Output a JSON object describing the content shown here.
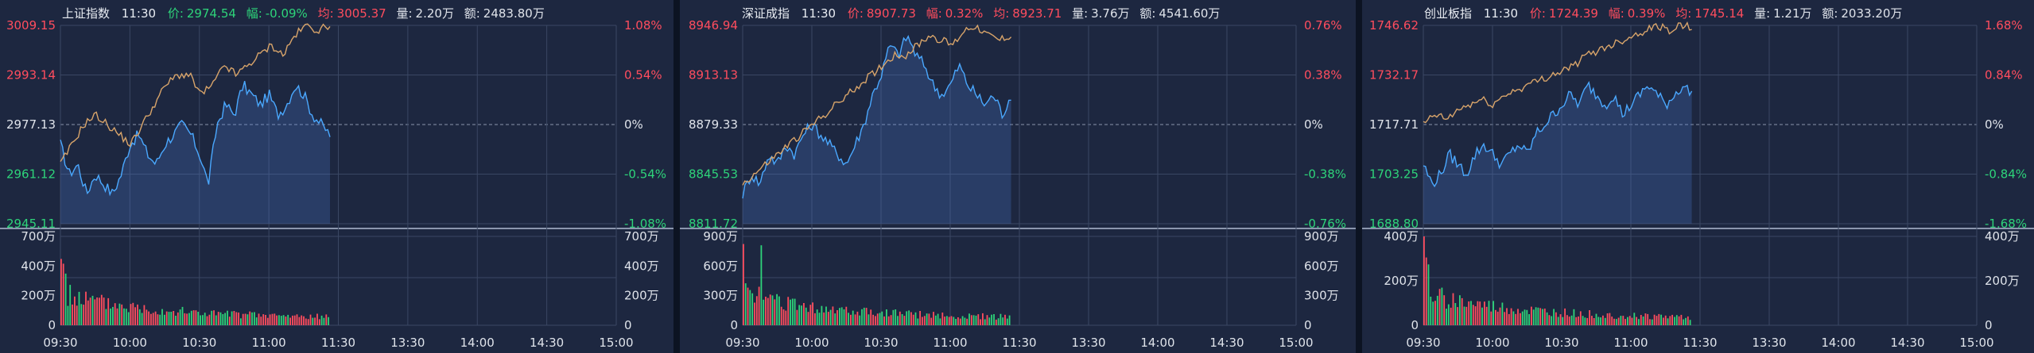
{
  "colors": {
    "up": "#ff4d5e",
    "down": "#2ed47a",
    "neutral": "#dfe3ea",
    "price_line": "#4aa8ff",
    "avg_line": "#d8a46a",
    "grid": "#3a4763",
    "panel_bg": "#1d2740"
  },
  "time_labels": [
    "09:30",
    "10:00",
    "10:30",
    "11:00",
    "11:30",
    "13:30",
    "14:00",
    "14:30",
    "15:00"
  ],
  "panels": [
    {
      "name": "上证指数",
      "time": "11:30",
      "price_label": "价:",
      "price": "2974.54",
      "change_label": "幅:",
      "change": "-0.09%",
      "avg_label": "均:",
      "avg": "3005.37",
      "volume_label": "量:",
      "volume": "2.20万",
      "amount_label": "额:",
      "amount": "2483.80万",
      "header_color": "down",
      "price_ticks": [
        "3009.15",
        "2993.14",
        "2977.13",
        "2961.12",
        "2945.11"
      ],
      "pct_ticks": [
        "1.08%",
        "0.54%",
        "0%",
        "-0.54%",
        "-1.08%"
      ],
      "vol_ticks": [
        "700万",
        "400万",
        "200万",
        "0"
      ],
      "vol_ticks_right": [
        "700万",
        "400万",
        "200万",
        "0"
      ],
      "vol_max": 700
    },
    {
      "name": "深证成指",
      "time": "11:30",
      "price_label": "价:",
      "price": "8907.73",
      "change_label": "幅:",
      "change": "0.32%",
      "avg_label": "均:",
      "avg": "8923.71",
      "volume_label": "量:",
      "volume": "3.76万",
      "amount_label": "额:",
      "amount": "4541.60万",
      "header_color": "up",
      "price_ticks": [
        "8946.94",
        "8913.13",
        "8879.33",
        "8845.53",
        "8811.72"
      ],
      "pct_ticks": [
        "0.76%",
        "0.38%",
        "0%",
        "-0.38%",
        "-0.76%"
      ],
      "vol_ticks": [
        "900万",
        "600万",
        "300万",
        "0"
      ],
      "vol_ticks_right": [
        "900万",
        "600万",
        "300万",
        "0"
      ],
      "vol_max": 900
    },
    {
      "name": "创业板指",
      "time": "11:30",
      "price_label": "价:",
      "price": "1724.39",
      "change_label": "幅:",
      "change": "0.39%",
      "avg_label": "均:",
      "avg": "1745.14",
      "volume_label": "量:",
      "volume": "1.21万",
      "amount_label": "额:",
      "amount": "2033.20万",
      "header_color": "up",
      "price_ticks": [
        "1746.62",
        "1732.17",
        "1717.71",
        "1703.25",
        "1688.80"
      ],
      "pct_ticks": [
        "1.68%",
        "0.84%",
        "0%",
        "-0.84%",
        "-1.68%"
      ],
      "vol_ticks": [
        "400万",
        "200万",
        "0"
      ],
      "vol_ticks_right": [
        "400万",
        "200万",
        "0"
      ],
      "vol_max": 400
    }
  ]
}
